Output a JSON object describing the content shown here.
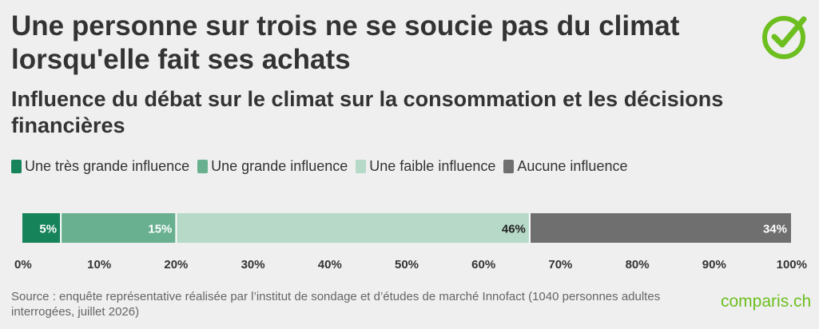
{
  "title": "Une personne sur trois ne se soucie pas du climat lorsqu'elle fait ses achats",
  "subtitle": "Influence du débat sur le climat sur la consommation et les décisions financières",
  "source": "Source : enquête représentative réalisée par l’institut de sondage et d’études de marché Innofact (1040 personnes adultes interrogées, juillet 2026)",
  "brand": "comparis.ch",
  "logo_icon": "checkmark-circle-icon",
  "colors": {
    "accent": "#6cbf1f",
    "series": [
      "#17835b",
      "#68b090",
      "#b6d9c8",
      "#6f6f6f"
    ]
  },
  "chart_data": {
    "type": "bar",
    "orientation": "horizontal",
    "stacked": true,
    "categories": [
      ""
    ],
    "series": [
      {
        "name": "Une très grande influence",
        "values": [
          5
        ],
        "label": "5%"
      },
      {
        "name": "Une grande influence",
        "values": [
          15
        ],
        "label": "15%"
      },
      {
        "name": "Une faible influence",
        "values": [
          46
        ],
        "label": "46%"
      },
      {
        "name": "Aucune influence",
        "values": [
          34
        ],
        "label": "34%"
      }
    ],
    "xlim": [
      0,
      100
    ],
    "xticks": [
      "0%",
      "10%",
      "20%",
      "30%",
      "40%",
      "50%",
      "60%",
      "70%",
      "80%",
      "90%",
      "100%"
    ],
    "legend_position": "top-left",
    "grid": false
  }
}
